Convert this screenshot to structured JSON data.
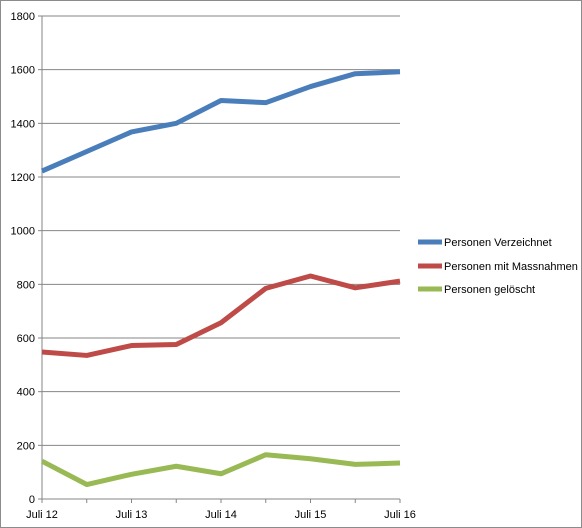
{
  "chart_data": {
    "type": "line",
    "x_tick_labels": [
      "Juli 12",
      "Juli 13",
      "Juli 14",
      "Juli 15",
      "Juli 16"
    ],
    "x_tick_positions": [
      0,
      2,
      4,
      6,
      8
    ],
    "x": [
      0,
      1,
      2,
      3,
      4,
      5,
      6,
      7,
      8
    ],
    "ylim": [
      0,
      1800
    ],
    "yticks": [
      0,
      200,
      400,
      600,
      800,
      1000,
      1200,
      1400,
      1600,
      1800
    ],
    "grid": true,
    "legend_position": "right",
    "series": [
      {
        "name": "Personen Verzeichnet",
        "color": "#4a7ebb",
        "values": [
          1222,
          1295,
          1368,
          1400,
          1485,
          1477,
          1537,
          1585,
          1592
        ]
      },
      {
        "name": "Personen mit Massnahmen",
        "color": "#be4b48",
        "values": [
          548,
          535,
          572,
          576,
          657,
          785,
          831,
          787,
          812
        ]
      },
      {
        "name": "Personen gelöscht",
        "color": "#98b954",
        "values": [
          141,
          54,
          92,
          122,
          94,
          165,
          150,
          129,
          134
        ]
      }
    ]
  }
}
